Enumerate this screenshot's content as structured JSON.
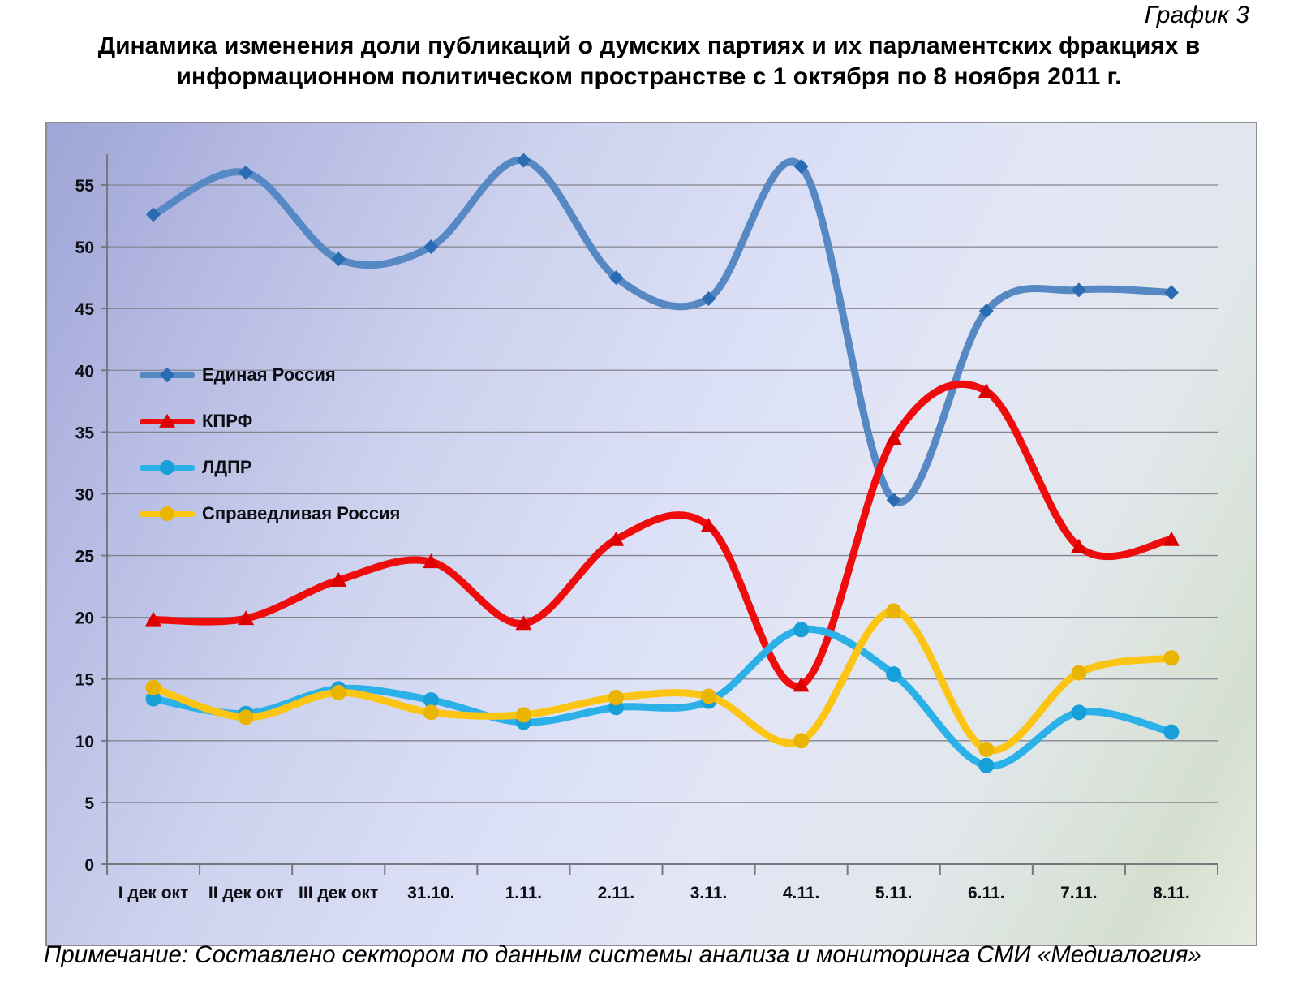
{
  "page": {
    "chart_number": "График 3",
    "title": "Динамика изменения доли публикаций о думских партиях и их парламентских фракциях в информационном политическом пространстве с 1 октября по 8 ноября 2011 г.",
    "note": "Примечание: Составлено сектором по данным системы анализа и мониторинга СМИ «Медиалогия»"
  },
  "colors": {
    "plot_bg_from": "#9fa5d5",
    "plot_bg_mid": "#dce0f6",
    "plot_bg_to": "#d5dfcf",
    "grid": "#84848e",
    "axis": "#77777f",
    "label": "#0e0e14"
  },
  "chart_data": {
    "type": "line",
    "smooth": true,
    "grid": true,
    "legend_position": "inside-left",
    "categories": [
      "I дек окт",
      "II дек окт",
      "III дек окт",
      "31.10.",
      "1.11.",
      "2.11.",
      "3.11.",
      "4.11.",
      "5.11.",
      "6.11.",
      "7.11.",
      "8.11."
    ],
    "yticks": [
      0,
      5,
      10,
      15,
      20,
      25,
      30,
      35,
      40,
      45,
      50,
      55
    ],
    "ylim": [
      0,
      57.5
    ],
    "xlabel": "",
    "ylabel": "",
    "series": [
      {
        "name": "Единая Россия",
        "marker": "diamond",
        "color": "#5688c4",
        "marker_color": "#2a6cb4",
        "values": [
          52.6,
          56.0,
          49.0,
          50.0,
          57.0,
          47.5,
          45.8,
          56.5,
          29.5,
          44.8,
          46.5,
          46.3
        ]
      },
      {
        "name": "КПРФ",
        "marker": "triangle",
        "color": "#ee0c0c",
        "marker_color": "#dd0000",
        "values": [
          19.8,
          19.9,
          23.0,
          24.5,
          19.5,
          26.3,
          27.4,
          14.5,
          34.5,
          38.3,
          25.7,
          26.3
        ]
      },
      {
        "name": "ЛДПР",
        "marker": "circle",
        "color": "#2bb1e8",
        "marker_color": "#17a0d8",
        "values": [
          13.4,
          12.2,
          14.2,
          13.3,
          11.5,
          12.7,
          13.2,
          19.0,
          15.4,
          8.0,
          12.3,
          10.7
        ]
      },
      {
        "name": "Справедливая Россия",
        "marker": "circle",
        "color": "#fdc513",
        "marker_color": "#e9b402",
        "values": [
          14.3,
          11.9,
          13.9,
          12.3,
          12.1,
          13.5,
          13.6,
          10.0,
          20.5,
          9.3,
          15.5,
          16.7
        ]
      }
    ]
  }
}
